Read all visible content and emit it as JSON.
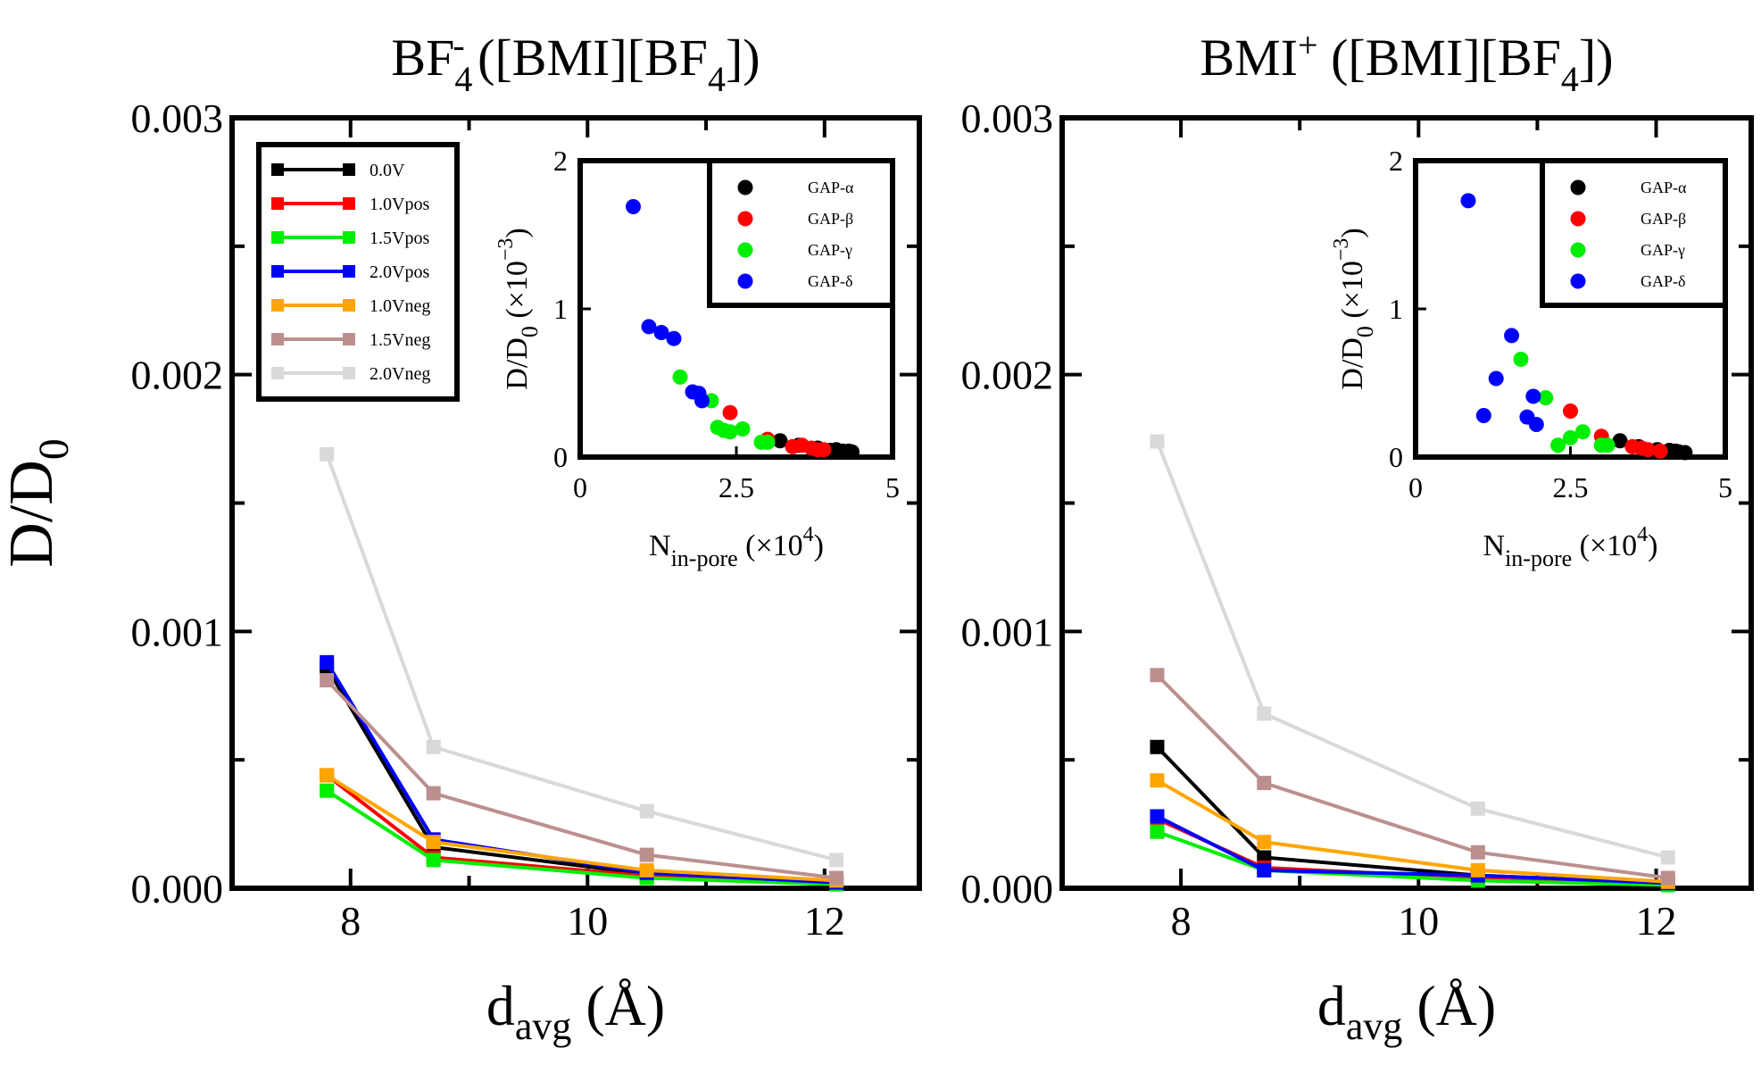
{
  "chart_data": [
    {
      "id": "left-main",
      "type": "line",
      "title": "BF",
      "title_sub": "4",
      "title_sup": "-",
      "title_rest": " ([BMI][BF",
      "title_sub2": "4",
      "title_end": "])",
      "ylabel": "D/D",
      "ylabel_sub": "0",
      "xlabel": "d",
      "xlabel_sub": "avg",
      "xlabel_rest": " (Å)",
      "xlim": [
        7,
        12.8
      ],
      "ylim": [
        0,
        0.003
      ],
      "xticks": [
        8,
        10,
        12
      ],
      "xtick_labels": [
        "8",
        "10",
        "12"
      ],
      "yticks": [
        0,
        0.001,
        0.002,
        0.003
      ],
      "ytick_labels": [
        "0.000",
        "0.001",
        "0.002",
        "0.003"
      ],
      "legend_position": "top-left",
      "x": [
        7.8,
        8.7,
        10.5,
        12.1
      ],
      "series": [
        {
          "name": "0.0V",
          "color": "#000000",
          "values": [
            0.00086,
            0.00016,
            5.5e-05,
            2e-05
          ]
        },
        {
          "name": "1.0Vpos",
          "color": "#ff0000",
          "values": [
            0.00044,
            0.00012,
            4.8e-05,
            1.8e-05
          ]
        },
        {
          "name": "1.5Vpos",
          "color": "#00ee00",
          "values": [
            0.00038,
            0.00011,
            4e-05,
            1.5e-05
          ]
        },
        {
          "name": "2.0Vpos",
          "color": "#0000ff",
          "values": [
            0.00088,
            0.00019,
            6e-05,
            2.2e-05
          ]
        },
        {
          "name": "1.0Vneg",
          "color": "#ffa500",
          "values": [
            0.00044,
            0.00018,
            7e-05,
            3e-05
          ]
        },
        {
          "name": "1.5Vneg",
          "color": "#bc8f8f",
          "values": [
            0.00081,
            0.00037,
            0.00013,
            4e-05
          ]
        },
        {
          "name": "2.0Vneg",
          "color": "#d9d9d9",
          "values": [
            0.00169,
            0.00055,
            0.0003,
            0.00011
          ]
        }
      ]
    },
    {
      "id": "left-inset",
      "type": "scatter",
      "ylabel": "D/D",
      "ylabel_sub": "0",
      "ylabel_rest": " (×10",
      "ylabel_sup": "−3",
      "ylabel_end": ")",
      "xlabel": "N",
      "xlabel_sub": "in-pore",
      "xlabel_rest": " (×10",
      "xlabel_sup": "4",
      "xlabel_end": ")",
      "xlim": [
        0,
        5
      ],
      "ylim": [
        0,
        2
      ],
      "xticks": [
        0,
        2.5,
        5
      ],
      "xtick_labels": [
        "0",
        "2.5",
        "5"
      ],
      "yticks": [
        0,
        1,
        2
      ],
      "ytick_labels": [
        "0",
        "1",
        "2"
      ],
      "legend_position": "top-right",
      "series": [
        {
          "name": "GAP-α",
          "color": "#000000",
          "points": [
            [
              3.2,
              0.11
            ],
            [
              3.5,
              0.08
            ],
            [
              3.8,
              0.06
            ],
            [
              4.1,
              0.05
            ],
            [
              4.3,
              0.04
            ],
            [
              4.35,
              0.035
            ],
            [
              4.2,
              0.04
            ],
            [
              4.0,
              0.045
            ]
          ]
        },
        {
          "name": "GAP-β",
          "color": "#ff0000",
          "points": [
            [
              2.4,
              0.3
            ],
            [
              3.0,
              0.12
            ],
            [
              3.4,
              0.07
            ],
            [
              3.7,
              0.06
            ],
            [
              3.8,
              0.05
            ],
            [
              3.9,
              0.05
            ],
            [
              3.55,
              0.08
            ]
          ]
        },
        {
          "name": "GAP-γ",
          "color": "#00ee00",
          "points": [
            [
              1.6,
              0.54
            ],
            [
              2.1,
              0.38
            ],
            [
              2.2,
              0.2
            ],
            [
              2.4,
              0.17
            ],
            [
              2.6,
              0.19
            ],
            [
              2.9,
              0.1
            ],
            [
              3.0,
              0.1
            ],
            [
              2.3,
              0.18
            ]
          ]
        },
        {
          "name": "GAP-δ",
          "color": "#0000ff",
          "points": [
            [
              0.85,
              1.69
            ],
            [
              1.1,
              0.88
            ],
            [
              1.3,
              0.84
            ],
            [
              1.5,
              0.8
            ],
            [
              1.8,
              0.44
            ],
            [
              1.9,
              0.43
            ],
            [
              1.95,
              0.38
            ]
          ]
        }
      ]
    },
    {
      "id": "right-main",
      "type": "line",
      "title": "BMI",
      "title_sup": "+",
      "title_rest": " ([BMI][BF",
      "title_sub2": "4",
      "title_end": "])",
      "xlabel": "d",
      "xlabel_sub": "avg",
      "xlabel_rest": " (Å)",
      "xlim": [
        7,
        12.8
      ],
      "ylim": [
        0,
        0.003
      ],
      "xticks": [
        8,
        10,
        12
      ],
      "xtick_labels": [
        "8",
        "10",
        "12"
      ],
      "yticks": [
        0,
        0.001,
        0.002,
        0.003
      ],
      "ytick_labels": [
        "0.000",
        "0.001",
        "0.002",
        "0.003"
      ],
      "x": [
        7.8,
        8.7,
        10.5,
        12.1
      ],
      "series": [
        {
          "name": "0.0V",
          "color": "#000000",
          "values": [
            0.00055,
            0.00012,
            5e-05,
            1.8e-05
          ]
        },
        {
          "name": "1.0Vpos",
          "color": "#ff0000",
          "values": [
            0.00027,
            8e-05,
            4e-05,
            1.5e-05
          ]
        },
        {
          "name": "1.5Vpos",
          "color": "#00ee00",
          "values": [
            0.00022,
            7e-05,
            3e-05,
            1.2e-05
          ]
        },
        {
          "name": "2.0Vpos",
          "color": "#0000ff",
          "values": [
            0.00028,
            7e-05,
            5e-05,
            2e-05
          ]
        },
        {
          "name": "1.0Vneg",
          "color": "#ffa500",
          "values": [
            0.00042,
            0.00018,
            7e-05,
            2.5e-05
          ]
        },
        {
          "name": "1.5Vneg",
          "color": "#bc8f8f",
          "values": [
            0.00083,
            0.00041,
            0.00014,
            4e-05
          ]
        },
        {
          "name": "2.0Vneg",
          "color": "#d9d9d9",
          "values": [
            0.00174,
            0.00068,
            0.00031,
            0.00012
          ]
        }
      ]
    },
    {
      "id": "right-inset",
      "type": "scatter",
      "ylabel": "D/D",
      "ylabel_sub": "0",
      "ylabel_rest": " (×10",
      "ylabel_sup": "−3",
      "ylabel_end": ")",
      "xlabel": "N",
      "xlabel_sub": "in-pore",
      "xlabel_rest": " (×10",
      "xlabel_sup": "4",
      "xlabel_end": ")",
      "xlim": [
        0,
        5
      ],
      "ylim": [
        0,
        2
      ],
      "xticks": [
        0,
        2.5,
        5
      ],
      "xtick_labels": [
        "0",
        "2.5",
        "5"
      ],
      "yticks": [
        0,
        1,
        2
      ],
      "ytick_labels": [
        "0",
        "1",
        "2"
      ],
      "legend_position": "top-right",
      "series": [
        {
          "name": "GAP-α",
          "color": "#000000",
          "points": [
            [
              3.3,
              0.11
            ],
            [
              3.6,
              0.07
            ],
            [
              3.9,
              0.05
            ],
            [
              4.2,
              0.04
            ],
            [
              4.35,
              0.03
            ],
            [
              4.25,
              0.035
            ],
            [
              4.1,
              0.045
            ]
          ]
        },
        {
          "name": "GAP-β",
          "color": "#ff0000",
          "points": [
            [
              2.5,
              0.31
            ],
            [
              3.0,
              0.14
            ],
            [
              3.5,
              0.07
            ],
            [
              3.75,
              0.05
            ],
            [
              3.95,
              0.04
            ],
            [
              3.65,
              0.06
            ]
          ]
        },
        {
          "name": "GAP-γ",
          "color": "#00ee00",
          "points": [
            [
              1.7,
              0.66
            ],
            [
              2.1,
              0.4
            ],
            [
              2.3,
              0.08
            ],
            [
              2.5,
              0.13
            ],
            [
              2.7,
              0.17
            ],
            [
              3.0,
              0.08
            ],
            [
              3.1,
              0.08
            ]
          ]
        },
        {
          "name": "GAP-δ",
          "color": "#0000ff",
          "points": [
            [
              0.85,
              1.73
            ],
            [
              1.1,
              0.28
            ],
            [
              1.3,
              0.53
            ],
            [
              1.55,
              0.82
            ],
            [
              1.8,
              0.27
            ],
            [
              1.9,
              0.41
            ],
            [
              1.95,
              0.22
            ]
          ]
        }
      ]
    }
  ]
}
